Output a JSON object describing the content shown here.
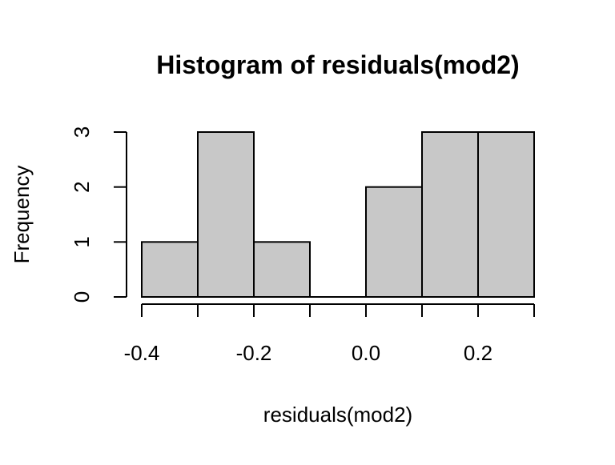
{
  "chart_data": {
    "type": "bar",
    "title": "Histogram of residuals(mod2)",
    "xlabel": "residuals(mod2)",
    "ylabel": "Frequency",
    "bins": [
      {
        "x0": -0.4,
        "x1": -0.3,
        "count": 1
      },
      {
        "x0": -0.3,
        "x1": -0.2,
        "count": 3
      },
      {
        "x0": -0.2,
        "x1": -0.1,
        "count": 1
      },
      {
        "x0": -0.1,
        "x1": 0.0,
        "count": 0
      },
      {
        "x0": 0.0,
        "x1": 0.1,
        "count": 2
      },
      {
        "x0": 0.1,
        "x1": 0.2,
        "count": 3
      },
      {
        "x0": 0.2,
        "x1": 0.3,
        "count": 3
      }
    ],
    "xlim": [
      -0.4,
      0.3
    ],
    "ylim": [
      0,
      3
    ],
    "x_tick_positions": [
      -0.4,
      -0.3,
      -0.2,
      -0.1,
      0.0,
      0.1,
      0.2,
      0.3
    ],
    "x_tick_labels": [
      {
        "value": -0.4,
        "label": "-0.4"
      },
      {
        "value": -0.2,
        "label": "-0.2"
      },
      {
        "value": 0.0,
        "label": "0.0"
      },
      {
        "value": 0.2,
        "label": "0.2"
      }
    ],
    "y_ticks": [
      {
        "value": 0,
        "label": "0"
      },
      {
        "value": 1,
        "label": "1"
      },
      {
        "value": 2,
        "label": "2"
      },
      {
        "value": 3,
        "label": "3"
      }
    ],
    "bar_fill": "#c8c8c8",
    "bar_stroke": "#000000",
    "grid": false,
    "legend": "none"
  }
}
